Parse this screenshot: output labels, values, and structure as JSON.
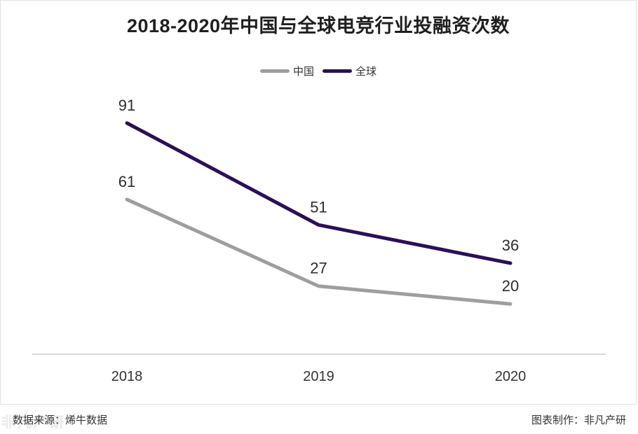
{
  "title": "2018-2020年中国与全球电竞行业投融资次数",
  "chart_data": {
    "type": "line",
    "title": "2018-2020年中国与全球电竞行业投融资次数",
    "categories": [
      "2018",
      "2019",
      "2020"
    ],
    "series": [
      {
        "name": "中国",
        "values": [
          61,
          27,
          20
        ],
        "color": "#9e9e9e"
      },
      {
        "name": "全球",
        "values": [
          91,
          51,
          36
        ],
        "color": "#2a1055"
      }
    ],
    "xlabel": "",
    "ylabel": "",
    "ylim": [
      0,
      100
    ],
    "grid": false,
    "legend_position": "top-center",
    "data_labels": true,
    "axis_line_color": "#d9d9d9",
    "label_color": "#2d2d2d"
  },
  "footer": {
    "source": "数据来源：烯牛数据",
    "credit": "图表制作：非凡产研",
    "watermark": "非凡产研"
  },
  "colors": {
    "background": "#ffffff",
    "card_border": "#e2e2e2",
    "title": "#1f1f1f",
    "x_axis_label": "#333333"
  }
}
